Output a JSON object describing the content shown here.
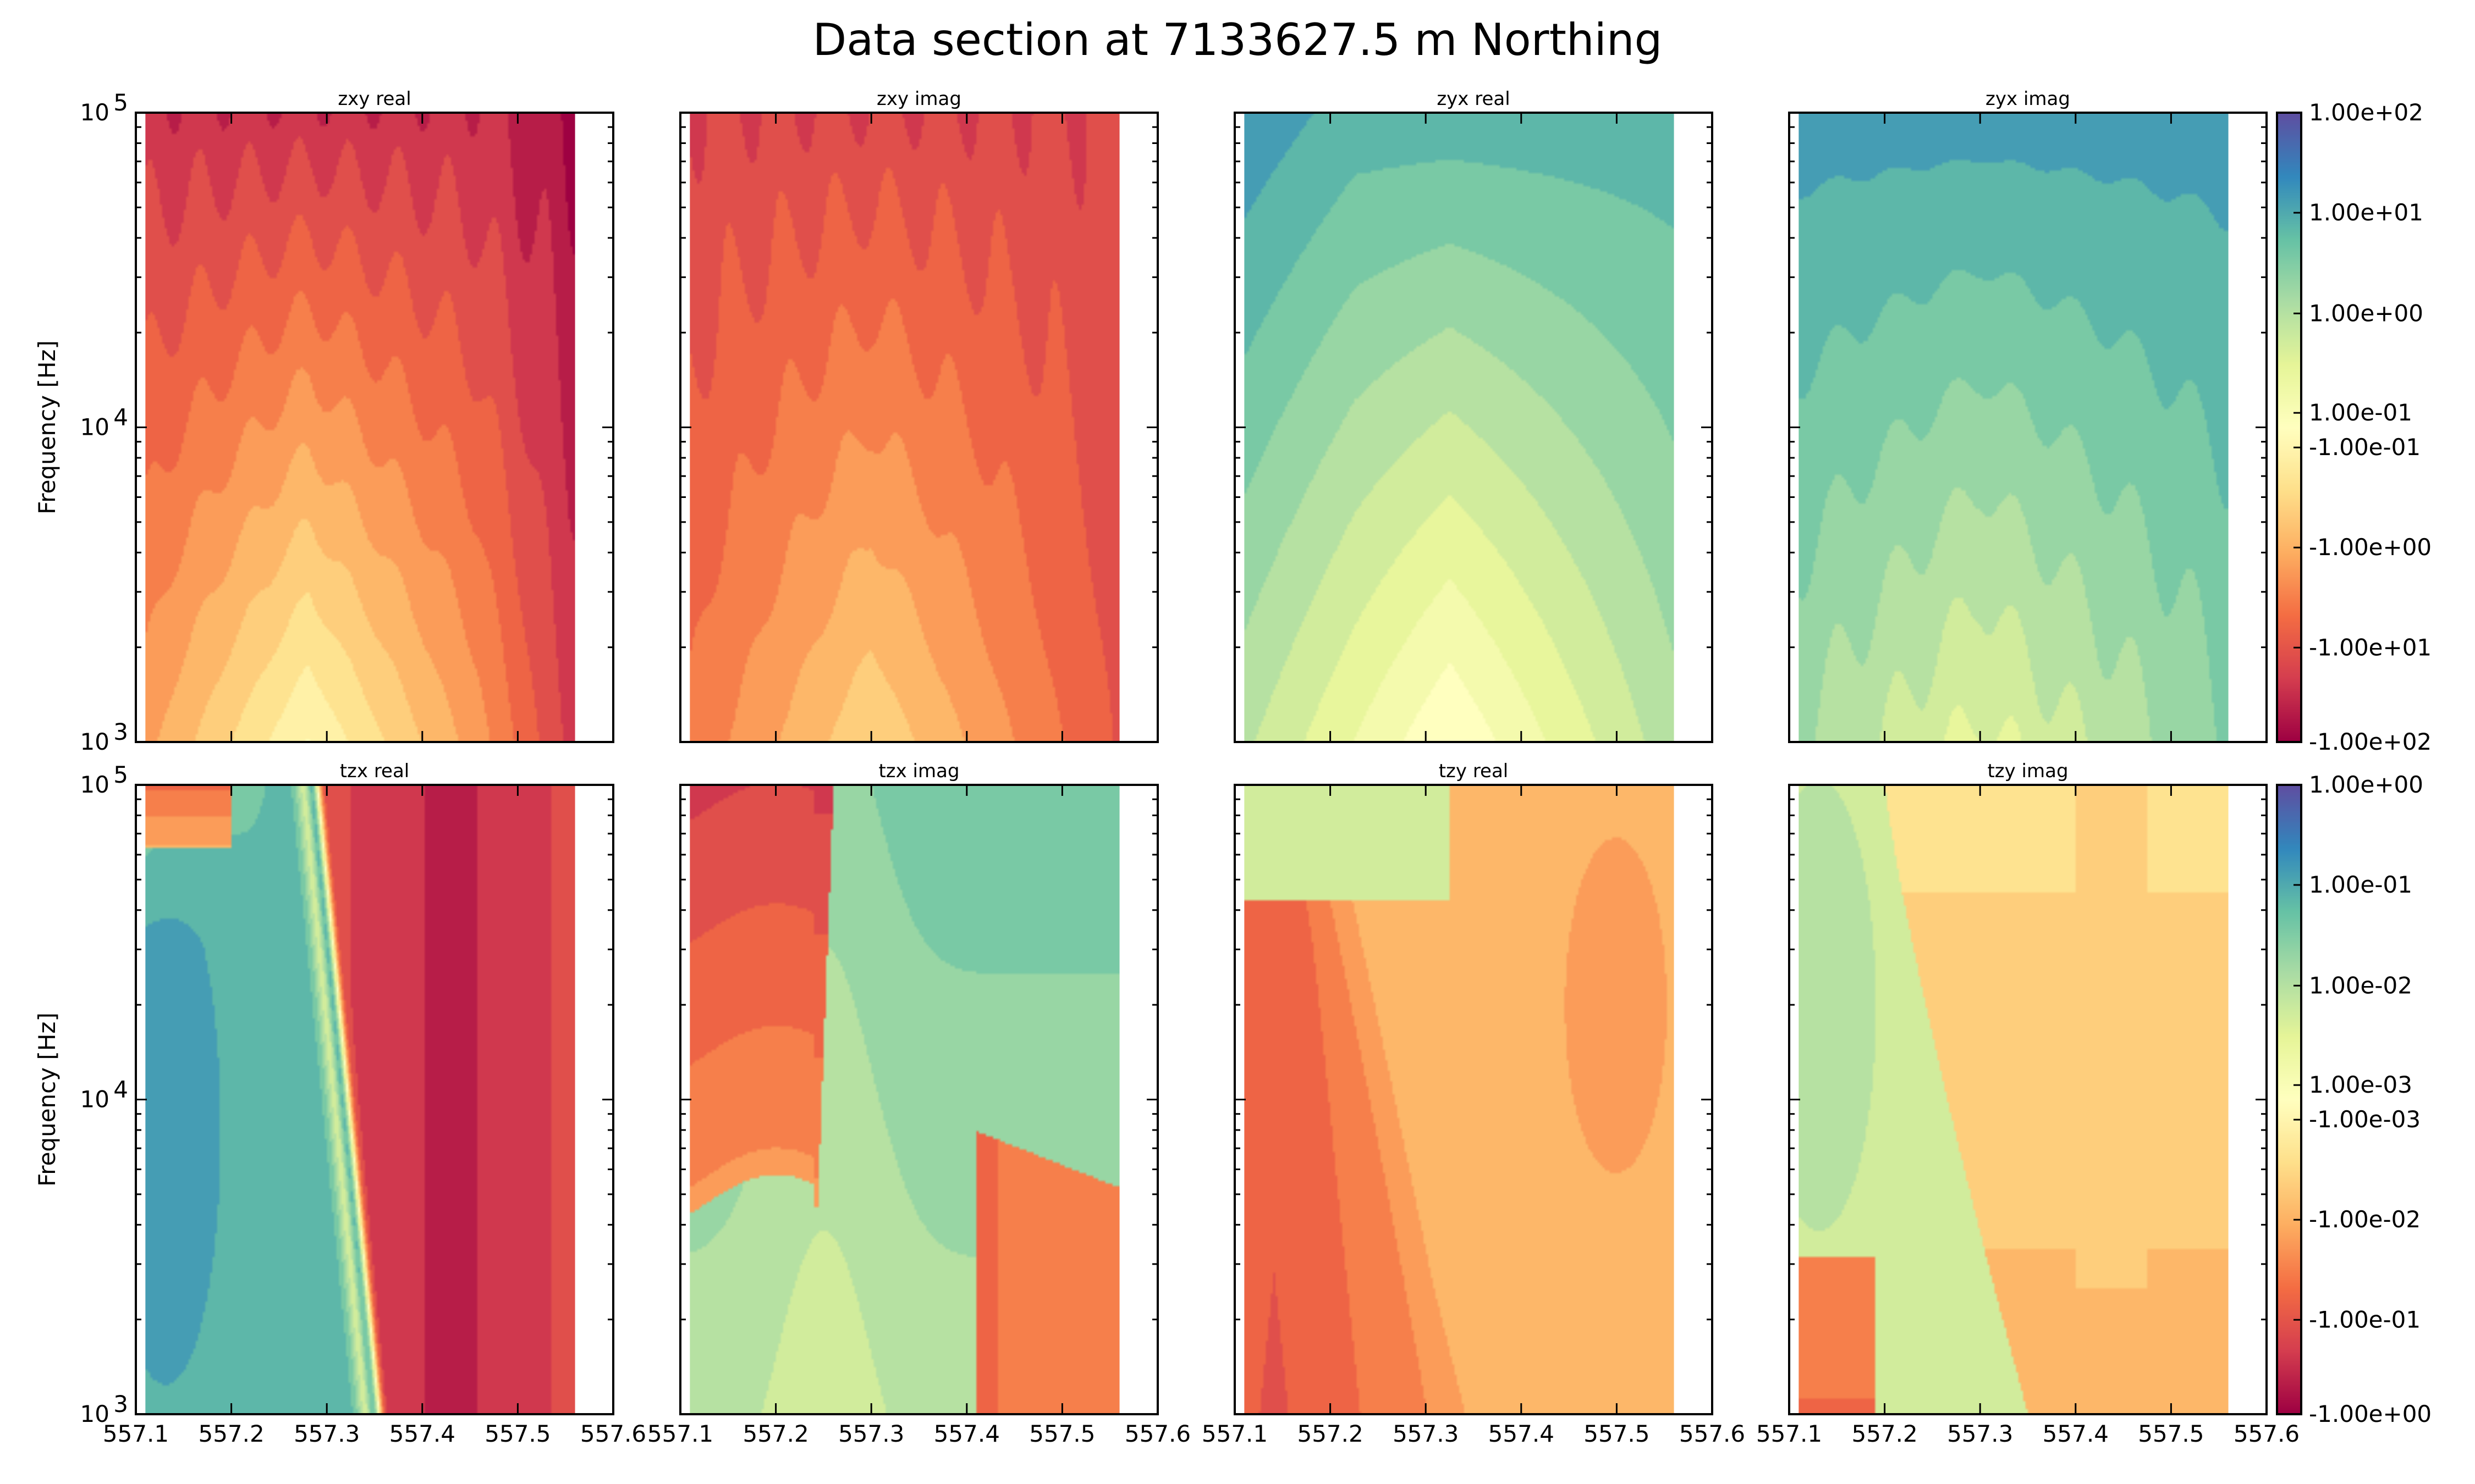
{
  "figure": {
    "title": "Data section at 7133627.5 m Northing"
  },
  "chart_data": {
    "type": "heatmap",
    "x_ticks": [
      "557.1",
      "557.2",
      "557.3",
      "557.4",
      "557.5",
      "557.6"
    ],
    "xlim": [
      557.1,
      557.6
    ],
    "data_x_extent": [
      557.11,
      557.56
    ],
    "y_scale": "log",
    "ylim": [
      1000,
      100000
    ],
    "y_ticks": [
      {
        "base": "10",
        "exp": "5"
      },
      {
        "base": "10",
        "exp": "4"
      },
      {
        "base": "10",
        "exp": "3"
      }
    ],
    "ylabel": "Frequency [Hz]",
    "colormap": "Spectral",
    "colormap_stops": [
      "#9e0142",
      "#d53e4f",
      "#f46d43",
      "#fdae61",
      "#fee08b",
      "#ffffbf",
      "#e6f598",
      "#abdda4",
      "#66c2a5",
      "#3288bd",
      "#5e4fa2"
    ],
    "panels": [
      {
        "title": "zxy real",
        "row": 0,
        "col": 0,
        "field": "zxy_real"
      },
      {
        "title": "zxy imag",
        "row": 0,
        "col": 1,
        "field": "zxy_imag"
      },
      {
        "title": "zyx real",
        "row": 0,
        "col": 2,
        "field": "zyx_real"
      },
      {
        "title": "zyx imag",
        "row": 0,
        "col": 3,
        "field": "zyx_imag"
      },
      {
        "title": "tzx real",
        "row": 1,
        "col": 0,
        "field": "tzx_real"
      },
      {
        "title": "tzx imag",
        "row": 1,
        "col": 1,
        "field": "tzx_imag"
      },
      {
        "title": "tzy real",
        "row": 1,
        "col": 2,
        "field": "tzy_real"
      },
      {
        "title": "tzy imag",
        "row": 1,
        "col": 3,
        "field": "tzy_imag"
      }
    ],
    "colorbars": [
      {
        "row": 0,
        "labels": [
          "1.00e+02",
          "1.00e+01",
          "1.00e+00",
          "1.00e-01",
          "-1.00e-01",
          "-1.00e+00",
          "-1.00e+01",
          "-1.00e+02"
        ]
      },
      {
        "row": 1,
        "labels": [
          "1.00e+00",
          "1.00e-01",
          "1.00e-02",
          "1.00e-03",
          "-1.00e-03",
          "-1.00e-02",
          "-1.00e-01",
          "-1.00e+00"
        ]
      }
    ]
  }
}
